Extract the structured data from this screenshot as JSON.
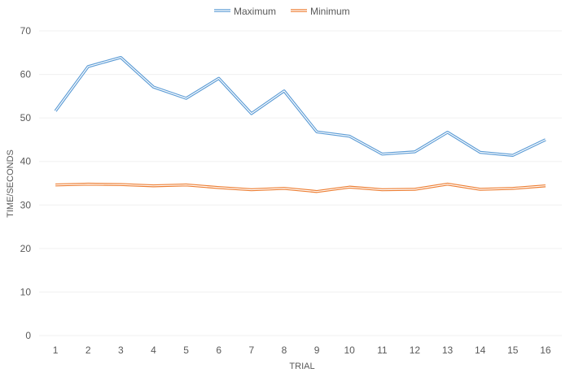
{
  "chart_data": {
    "type": "line",
    "title": "",
    "xlabel": "TRIAL",
    "ylabel": "TIME/SECONDS",
    "categories": [
      "1",
      "2",
      "3",
      "4",
      "5",
      "6",
      "7",
      "8",
      "9",
      "10",
      "11",
      "12",
      "13",
      "14",
      "15",
      "16"
    ],
    "ylim": [
      0,
      70
    ],
    "yticks": [
      "0",
      "10",
      "20",
      "30",
      "40",
      "50",
      "60",
      "70"
    ],
    "grid": true,
    "legend_position": "top",
    "series": [
      {
        "name": "Maximum",
        "color": "#5B9BD5",
        "values": [
          51.6,
          61.8,
          63.9,
          57.1,
          54.5,
          59.1,
          51.0,
          56.2,
          46.8,
          45.8,
          41.7,
          42.2,
          46.7,
          42.1,
          41.4,
          45.0
        ]
      },
      {
        "name": "Minimum",
        "color": "#ED7D31",
        "values": [
          34.6,
          34.8,
          34.7,
          34.4,
          34.6,
          34.0,
          33.5,
          33.8,
          33.1,
          34.1,
          33.5,
          33.6,
          34.8,
          33.6,
          33.8,
          34.4
        ]
      }
    ]
  }
}
